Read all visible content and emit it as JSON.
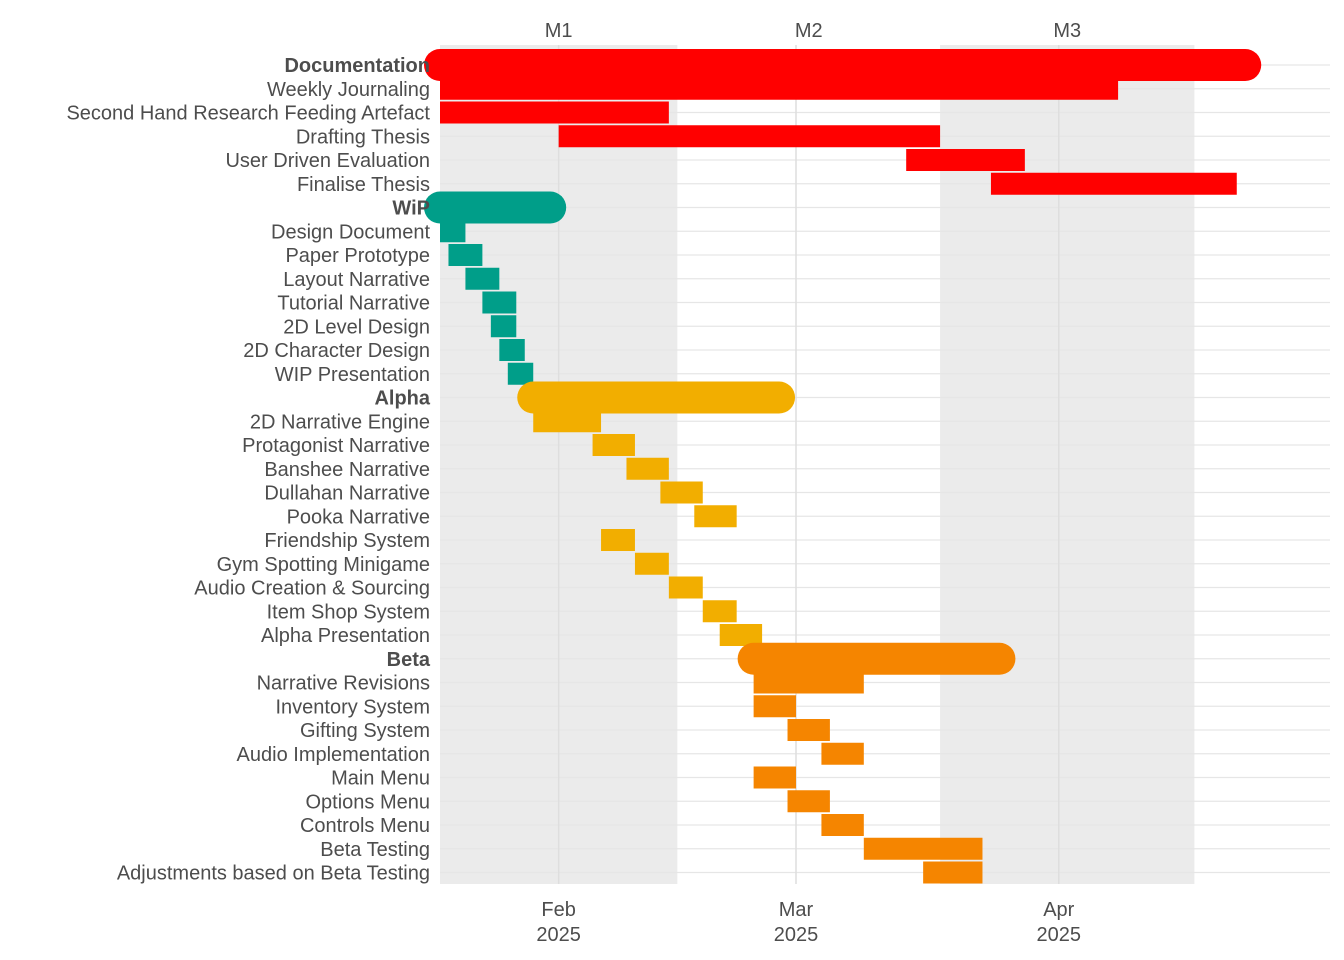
{
  "chart_data": {
    "type": "gantt",
    "title": "",
    "xlabel": "",
    "ylabel": "",
    "xlim": [
      "2025-01-18",
      "2025-05-03"
    ],
    "grid": true,
    "legend": "none",
    "milestone_bands": [
      {
        "label": "M1",
        "start": "2025-01-18",
        "end": "2025-02-15",
        "shaded": true
      },
      {
        "label": "M2",
        "start": "2025-02-15",
        "end": "2025-03-18",
        "shaded": false
      },
      {
        "label": "M3",
        "start": "2025-03-18",
        "end": "2025-04-17",
        "shaded": true
      }
    ],
    "x_ticks": [
      {
        "date": "2025-02-01",
        "line1": "Feb",
        "line2": "2025"
      },
      {
        "date": "2025-03-01",
        "line1": "Mar",
        "line2": "2025"
      },
      {
        "date": "2025-04-01",
        "line1": "Apr",
        "line2": "2025"
      }
    ],
    "groups": [
      {
        "name": "Documentation",
        "color": "#FF0000",
        "start": "2025-01-18",
        "end": "2025-04-23",
        "tasks": [
          {
            "name": "Weekly Journaling",
            "start": "2025-01-18",
            "end": "2025-04-08"
          },
          {
            "name": "Second Hand Research Feeding Artefact",
            "start": "2025-01-18",
            "end": "2025-02-14"
          },
          {
            "name": "Drafting Thesis",
            "start": "2025-02-01",
            "end": "2025-03-18"
          },
          {
            "name": "User Driven Evaluation",
            "start": "2025-03-14",
            "end": "2025-03-28"
          },
          {
            "name": "Finalise Thesis",
            "start": "2025-03-24",
            "end": "2025-04-22"
          }
        ]
      },
      {
        "name": "WiP",
        "color": "#009E89",
        "start": "2025-01-18",
        "end": "2025-01-31",
        "tasks": [
          {
            "name": "Design Document",
            "start": "2025-01-18",
            "end": "2025-01-21"
          },
          {
            "name": "Paper Prototype",
            "start": "2025-01-19",
            "end": "2025-01-23"
          },
          {
            "name": "Layout Narrative",
            "start": "2025-01-21",
            "end": "2025-01-25"
          },
          {
            "name": "Tutorial Narrative",
            "start": "2025-01-23",
            "end": "2025-01-27"
          },
          {
            "name": "2D Level Design",
            "start": "2025-01-24",
            "end": "2025-01-27"
          },
          {
            "name": "2D Character Design",
            "start": "2025-01-25",
            "end": "2025-01-28"
          },
          {
            "name": "WIP Presentation",
            "start": "2025-01-26",
            "end": "2025-01-29"
          }
        ]
      },
      {
        "name": "Alpha",
        "color": "#F2AE00",
        "start": "2025-01-29",
        "end": "2025-02-27",
        "tasks": [
          {
            "name": "2D Narrative Engine",
            "start": "2025-01-29",
            "end": "2025-02-06"
          },
          {
            "name": "Protagonist Narrative",
            "start": "2025-02-05",
            "end": "2025-02-10"
          },
          {
            "name": "Banshee Narrative",
            "start": "2025-02-09",
            "end": "2025-02-14"
          },
          {
            "name": "Dullahan Narrative",
            "start": "2025-02-13",
            "end": "2025-02-18"
          },
          {
            "name": "Pooka Narrative",
            "start": "2025-02-17",
            "end": "2025-02-22"
          },
          {
            "name": "Friendship System",
            "start": "2025-02-06",
            "end": "2025-02-10"
          },
          {
            "name": "Gym Spotting Minigame",
            "start": "2025-02-10",
            "end": "2025-02-14"
          },
          {
            "name": "Audio Creation & Sourcing",
            "start": "2025-02-14",
            "end": "2025-02-18"
          },
          {
            "name": "Item Shop System",
            "start": "2025-02-18",
            "end": "2025-02-22"
          },
          {
            "name": "Alpha Presentation",
            "start": "2025-02-20",
            "end": "2025-02-25"
          }
        ]
      },
      {
        "name": "Beta",
        "color": "#F58500",
        "start": "2025-02-24",
        "end": "2025-03-25",
        "tasks": [
          {
            "name": "Narrative Revisions",
            "start": "2025-02-24",
            "end": "2025-03-09"
          },
          {
            "name": "Inventory System",
            "start": "2025-02-24",
            "end": "2025-03-01"
          },
          {
            "name": "Gifting System",
            "start": "2025-02-28",
            "end": "2025-03-05"
          },
          {
            "name": "Audio Implementation",
            "start": "2025-03-04",
            "end": "2025-03-09"
          },
          {
            "name": "Main Menu",
            "start": "2025-02-24",
            "end": "2025-03-01"
          },
          {
            "name": "Options Menu",
            "start": "2025-02-28",
            "end": "2025-03-05"
          },
          {
            "name": "Controls Menu",
            "start": "2025-03-04",
            "end": "2025-03-09"
          },
          {
            "name": "Beta Testing",
            "start": "2025-03-09",
            "end": "2025-03-23"
          },
          {
            "name": "Adjustments based on Beta Testing",
            "start": "2025-03-16",
            "end": "2025-03-23"
          }
        ]
      }
    ]
  }
}
